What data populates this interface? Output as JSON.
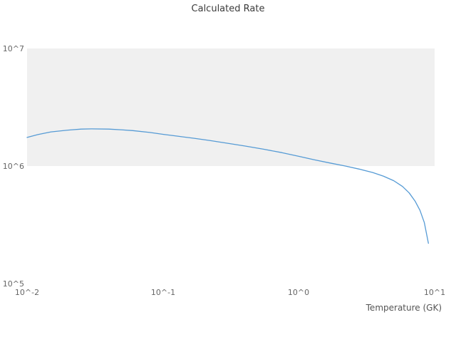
{
  "chart_data": {
    "type": "line",
    "title": "Calculated Rate",
    "xlabel": "Temperature (GK)",
    "ylabel": "",
    "xscale": "log",
    "yscale": "log",
    "xlim": [
      0.01,
      10
    ],
    "ylim": [
      100000,
      10000000
    ],
    "x_tick_labels": [
      "10^-2",
      "10^-1",
      "10^0",
      "10^1"
    ],
    "x_tick_values": [
      0.01,
      0.1,
      1,
      10
    ],
    "y_tick_labels": [
      "10^5",
      "10^6",
      "10^7"
    ],
    "y_tick_values": [
      100000,
      1000000,
      10000000
    ],
    "band": {
      "y_from": 1000000,
      "y_to": 10000000,
      "color": "#f0f0f0"
    },
    "line_color": "#569bd5",
    "legend": "none",
    "grid": "band-only",
    "series": [
      {
        "name": "calculated-rate",
        "x": [
          0.01,
          0.012,
          0.015,
          0.02,
          0.025,
          0.03,
          0.04,
          0.05,
          0.06,
          0.08,
          0.1,
          0.13,
          0.17,
          0.22,
          0.3,
          0.4,
          0.55,
          0.75,
          1.0,
          1.3,
          1.7,
          2.2,
          2.8,
          3.5,
          4.2,
          5.0,
          5.8,
          6.5,
          7.2,
          7.8,
          8.4,
          9.0
        ],
        "y": [
          1750000,
          1850000,
          1950000,
          2020000,
          2060000,
          2070000,
          2060000,
          2030000,
          2000000,
          1930000,
          1860000,
          1790000,
          1720000,
          1650000,
          1560000,
          1480000,
          1390000,
          1300000,
          1210000,
          1130000,
          1060000,
          1000000,
          940000,
          880000,
          820000,
          750000,
          670000,
          590000,
          500000,
          420000,
          330000,
          220000
        ]
      }
    ]
  }
}
